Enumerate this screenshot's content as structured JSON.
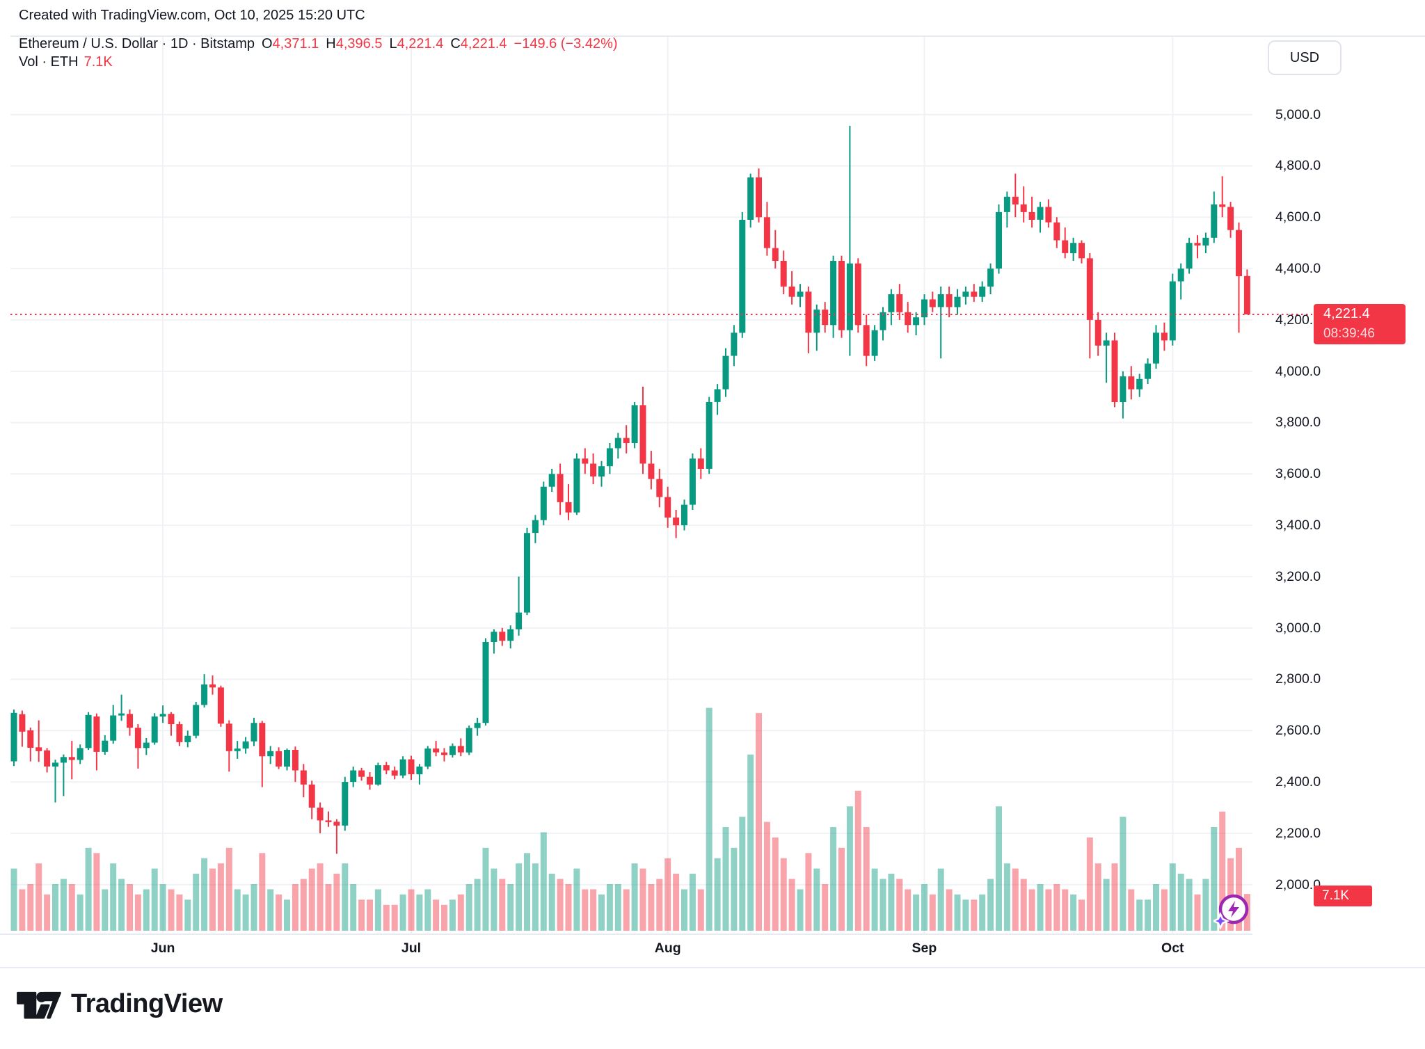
{
  "attribution": "Created with TradingView.com, Oct 10, 2025 15:20 UTC",
  "header": {
    "title": "Ethereum / U.S. Dollar · 1D · Bitstamp",
    "ohlc": [
      {
        "label": "O",
        "value": "4,371.1"
      },
      {
        "label": "H",
        "value": "4,396.5"
      },
      {
        "label": "L",
        "value": "4,221.4"
      },
      {
        "label": "C",
        "value": "4,221.4"
      }
    ],
    "change": "−149.6 (−3.42%)",
    "vol_label": "Vol · ETH",
    "vol_value": "7.1K"
  },
  "price_scale": {
    "currency_label": "USD",
    "ticks": [
      "5,000.0",
      "4,800.0",
      "4,600.0",
      "4,400.0",
      "4,200.0",
      "4,000.0",
      "3,800.0",
      "3,600.0",
      "3,400.0",
      "3,200.0",
      "3,000.0",
      "2,800.0",
      "2,600.0",
      "2,400.0",
      "2,200.0",
      "2,000.0"
    ],
    "tick_values": [
      5000,
      4800,
      4600,
      4400,
      4200,
      4000,
      3800,
      3600,
      3400,
      3200,
      3000,
      2800,
      2600,
      2400,
      2200,
      2000
    ],
    "last_price": "4,221.4",
    "countdown": "08:39:46",
    "volume_label": "7.1K"
  },
  "time_axis": {
    "months": [
      {
        "label": "Jun",
        "day_index": 18
      },
      {
        "label": "Jul",
        "day_index": 48
      },
      {
        "label": "Aug",
        "day_index": 79
      },
      {
        "label": "Sep",
        "day_index": 110
      },
      {
        "label": "Oct",
        "day_index": 140
      }
    ]
  },
  "logo": {
    "text": "TradingView"
  },
  "colors": {
    "up": "#089981",
    "down": "#f23645",
    "vol_up": "rgba(8,153,129,0.45)",
    "vol_down": "rgba(242,54,69,0.45)",
    "grid": "#f0f2f6",
    "accent_red": "#f23645",
    "text": "#131722",
    "boost_purple": "#9c27b0",
    "sparkle_violet": "#7c4dff"
  },
  "chart_data": {
    "type": "candlestick",
    "title": "Ethereum / U.S. Dollar",
    "interval": "1D",
    "exchange": "Bitstamp",
    "currency": "USD",
    "start_date": "2025-05-14",
    "end_date": "2025-10-10",
    "price_axis_range": [
      2000,
      5000
    ],
    "price_tick_step": 200,
    "grid": true,
    "last_close": 4221.4,
    "last_change": -149.6,
    "last_change_pct": -3.42,
    "volume_unit": "K ETH",
    "last_volume_k": 7.1,
    "columns": [
      "open",
      "high",
      "low",
      "close",
      "volume_k"
    ],
    "candles": [
      [
        2480,
        2682,
        2462,
        2669,
        12
      ],
      [
        2664,
        2678,
        2537,
        2596,
        8
      ],
      [
        2601,
        2612,
        2480,
        2533,
        9
      ],
      [
        2535,
        2640,
        2478,
        2520,
        13
      ],
      [
        2523,
        2532,
        2437,
        2460,
        7
      ],
      [
        2460,
        2487,
        2320,
        2475,
        9
      ],
      [
        2475,
        2507,
        2345,
        2497,
        10
      ],
      [
        2497,
        2560,
        2410,
        2486,
        9
      ],
      [
        2486,
        2546,
        2470,
        2532,
        7
      ],
      [
        2532,
        2672,
        2525,
        2661,
        16
      ],
      [
        2655,
        2667,
        2445,
        2517,
        15
      ],
      [
        2517,
        2582,
        2506,
        2561,
        8
      ],
      [
        2561,
        2700,
        2549,
        2659,
        13
      ],
      [
        2659,
        2740,
        2638,
        2667,
        10
      ],
      [
        2665,
        2682,
        2580,
        2611,
        9
      ],
      [
        2611,
        2625,
        2452,
        2532,
        7
      ],
      [
        2532,
        2571,
        2505,
        2553,
        8
      ],
      [
        2553,
        2668,
        2545,
        2655,
        12
      ],
      [
        2655,
        2698,
        2630,
        2665,
        9
      ],
      [
        2665,
        2672,
        2580,
        2625,
        8
      ],
      [
        2625,
        2635,
        2540,
        2555,
        7
      ],
      [
        2555,
        2600,
        2535,
        2580,
        6
      ],
      [
        2580,
        2712,
        2570,
        2700,
        11
      ],
      [
        2700,
        2820,
        2690,
        2780,
        14
      ],
      [
        2780,
        2815,
        2740,
        2768,
        12
      ],
      [
        2768,
        2775,
        2615,
        2627,
        13
      ],
      [
        2627,
        2640,
        2440,
        2520,
        16
      ],
      [
        2520,
        2560,
        2490,
        2530,
        8
      ],
      [
        2530,
        2575,
        2510,
        2558,
        7
      ],
      [
        2558,
        2650,
        2540,
        2630,
        9
      ],
      [
        2630,
        2638,
        2380,
        2500,
        15
      ],
      [
        2500,
        2540,
        2470,
        2520,
        8
      ],
      [
        2520,
        2535,
        2450,
        2460,
        7
      ],
      [
        2460,
        2530,
        2445,
        2525,
        6
      ],
      [
        2525,
        2538,
        2400,
        2445,
        9
      ],
      [
        2445,
        2470,
        2340,
        2390,
        10
      ],
      [
        2390,
        2405,
        2255,
        2300,
        12
      ],
      [
        2300,
        2320,
        2200,
        2250,
        13
      ],
      [
        2250,
        2285,
        2225,
        2245,
        9
      ],
      [
        2245,
        2255,
        2120,
        2230,
        11
      ],
      [
        2230,
        2420,
        2210,
        2400,
        13
      ],
      [
        2400,
        2460,
        2380,
        2445,
        9
      ],
      [
        2445,
        2455,
        2405,
        2420,
        6
      ],
      [
        2420,
        2438,
        2370,
        2390,
        6
      ],
      [
        2390,
        2475,
        2385,
        2465,
        8
      ],
      [
        2465,
        2478,
        2430,
        2445,
        5
      ],
      [
        2445,
        2460,
        2410,
        2425,
        5
      ],
      [
        2425,
        2500,
        2415,
        2488,
        7
      ],
      [
        2488,
        2502,
        2408,
        2430,
        8
      ],
      [
        2430,
        2470,
        2390,
        2460,
        7
      ],
      [
        2460,
        2540,
        2450,
        2530,
        8
      ],
      [
        2530,
        2560,
        2500,
        2515,
        6
      ],
      [
        2515,
        2532,
        2480,
        2505,
        5
      ],
      [
        2505,
        2550,
        2495,
        2540,
        6
      ],
      [
        2540,
        2570,
        2500,
        2515,
        7
      ],
      [
        2515,
        2620,
        2505,
        2610,
        9
      ],
      [
        2610,
        2650,
        2580,
        2630,
        10
      ],
      [
        2630,
        2960,
        2620,
        2945,
        16
      ],
      [
        2945,
        2995,
        2900,
        2985,
        12
      ],
      [
        2985,
        3000,
        2930,
        2950,
        10
      ],
      [
        2950,
        3010,
        2920,
        2995,
        9
      ],
      [
        2995,
        3200,
        2970,
        3060,
        13
      ],
      [
        3060,
        3390,
        3050,
        3370,
        15
      ],
      [
        3370,
        3440,
        3330,
        3420,
        13
      ],
      [
        3420,
        3570,
        3400,
        3550,
        19
      ],
      [
        3550,
        3620,
        3530,
        3600,
        11
      ],
      [
        3600,
        3640,
        3440,
        3490,
        10
      ],
      [
        3490,
        3560,
        3420,
        3450,
        9
      ],
      [
        3450,
        3680,
        3440,
        3660,
        12
      ],
      [
        3660,
        3700,
        3600,
        3640,
        8
      ],
      [
        3640,
        3680,
        3560,
        3590,
        8
      ],
      [
        3590,
        3650,
        3550,
        3630,
        7
      ],
      [
        3630,
        3720,
        3600,
        3700,
        9
      ],
      [
        3700,
        3760,
        3660,
        3740,
        9
      ],
      [
        3740,
        3790,
        3680,
        3720,
        8
      ],
      [
        3720,
        3880,
        3700,
        3868,
        13
      ],
      [
        3868,
        3940,
        3600,
        3640,
        12
      ],
      [
        3640,
        3690,
        3540,
        3580,
        9
      ],
      [
        3580,
        3620,
        3470,
        3510,
        10
      ],
      [
        3510,
        3550,
        3390,
        3430,
        14
      ],
      [
        3430,
        3460,
        3350,
        3400,
        11
      ],
      [
        3400,
        3500,
        3380,
        3480,
        8
      ],
      [
        3480,
        3680,
        3460,
        3660,
        11
      ],
      [
        3660,
        3700,
        3580,
        3620,
        8
      ],
      [
        3620,
        3900,
        3600,
        3880,
        43
      ],
      [
        3880,
        3950,
        3830,
        3930,
        14
      ],
      [
        3930,
        4090,
        3900,
        4060,
        20
      ],
      [
        4060,
        4180,
        4020,
        4150,
        16
      ],
      [
        4150,
        4620,
        4130,
        4590,
        22
      ],
      [
        4590,
        4770,
        4560,
        4755,
        34
      ],
      [
        4755,
        4790,
        4580,
        4600,
        42
      ],
      [
        4600,
        4660,
        4450,
        4480,
        21
      ],
      [
        4480,
        4550,
        4400,
        4430,
        18
      ],
      [
        4430,
        4470,
        4300,
        4330,
        14
      ],
      [
        4330,
        4390,
        4260,
        4290,
        10
      ],
      [
        4290,
        4340,
        4250,
        4310,
        8
      ],
      [
        4310,
        4330,
        4070,
        4150,
        15
      ],
      [
        4150,
        4260,
        4080,
        4240,
        12
      ],
      [
        4240,
        4270,
        4150,
        4180,
        9
      ],
      [
        4180,
        4450,
        4130,
        4430,
        20
      ],
      [
        4430,
        4450,
        4130,
        4160,
        16
      ],
      [
        4160,
        4956,
        4060,
        4420,
        24
      ],
      [
        4420,
        4440,
        4150,
        4180,
        27
      ],
      [
        4180,
        4220,
        4020,
        4060,
        20
      ],
      [
        4060,
        4180,
        4040,
        4160,
        12
      ],
      [
        4160,
        4250,
        4120,
        4230,
        10
      ],
      [
        4230,
        4320,
        4180,
        4300,
        11
      ],
      [
        4300,
        4340,
        4200,
        4230,
        10
      ],
      [
        4230,
        4270,
        4150,
        4180,
        8
      ],
      [
        4180,
        4230,
        4140,
        4210,
        7
      ],
      [
        4210,
        4300,
        4180,
        4280,
        9
      ],
      [
        4280,
        4310,
        4230,
        4250,
        7
      ],
      [
        4250,
        4330,
        4050,
        4300,
        12
      ],
      [
        4300,
        4330,
        4210,
        4250,
        8
      ],
      [
        4250,
        4320,
        4220,
        4290,
        7
      ],
      [
        4290,
        4330,
        4260,
        4310,
        6
      ],
      [
        4310,
        4340,
        4270,
        4290,
        6
      ],
      [
        4290,
        4350,
        4270,
        4330,
        7
      ],
      [
        4330,
        4420,
        4300,
        4400,
        10
      ],
      [
        4400,
        4650,
        4380,
        4620,
        24
      ],
      [
        4620,
        4700,
        4560,
        4680,
        13
      ],
      [
        4680,
        4770,
        4600,
        4650,
        12
      ],
      [
        4650,
        4720,
        4580,
        4620,
        10
      ],
      [
        4620,
        4680,
        4560,
        4590,
        8
      ],
      [
        4590,
        4660,
        4540,
        4640,
        9
      ],
      [
        4640,
        4670,
        4560,
        4580,
        8
      ],
      [
        4580,
        4600,
        4480,
        4510,
        9
      ],
      [
        4510,
        4560,
        4440,
        4460,
        8
      ],
      [
        4460,
        4520,
        4430,
        4500,
        7
      ],
      [
        4500,
        4510,
        4420,
        4440,
        6
      ],
      [
        4440,
        4460,
        4050,
        4200,
        18
      ],
      [
        4200,
        4230,
        4060,
        4100,
        13
      ],
      [
        4100,
        4150,
        3955,
        4120,
        10
      ],
      [
        4120,
        4150,
        3860,
        3880,
        13
      ],
      [
        3880,
        4000,
        3816,
        3980,
        22
      ],
      [
        3980,
        4020,
        3890,
        3930,
        8
      ],
      [
        3930,
        3990,
        3900,
        3970,
        6
      ],
      [
        3970,
        4050,
        3950,
        4030,
        6
      ],
      [
        4030,
        4180,
        4010,
        4150,
        9
      ],
      [
        4150,
        4190,
        4080,
        4120,
        8
      ],
      [
        4120,
        4380,
        4100,
        4350,
        13
      ],
      [
        4350,
        4420,
        4280,
        4400,
        11
      ],
      [
        4400,
        4520,
        4380,
        4500,
        10
      ],
      [
        4500,
        4530,
        4440,
        4490,
        7
      ],
      [
        4490,
        4540,
        4460,
        4520,
        10
      ],
      [
        4520,
        4700,
        4500,
        4650,
        20
      ],
      [
        4650,
        4760,
        4600,
        4640,
        23
      ],
      [
        4640,
        4660,
        4520,
        4550,
        14
      ],
      [
        4550,
        4580,
        4150,
        4370,
        16
      ],
      [
        4371.1,
        4396.5,
        4221.4,
        4221.4,
        7.1
      ]
    ]
  }
}
